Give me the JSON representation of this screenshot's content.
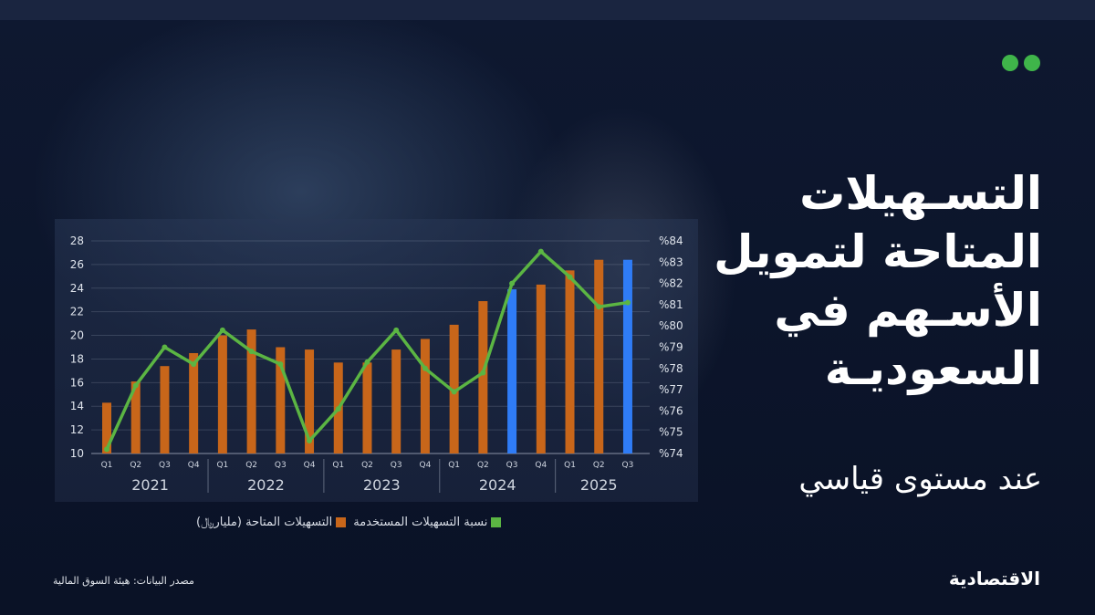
{
  "title": "التسـهيلات المتاحة لتمويل الأسـهم في السعوديـة",
  "subtitle": "عند مستوى قياسي",
  "source": "مصدر البيانات: هيئة السوق المالية",
  "logo": "الاقتصادية",
  "colors": {
    "bar": "#c8661a",
    "bar_highlight": "#2f7cf6",
    "line": "#5bb543",
    "background": "#0a1226"
  },
  "chart_data": {
    "type": "bar+line",
    "categories": [
      "Q1",
      "Q2",
      "Q3",
      "Q4",
      "Q1",
      "Q2",
      "Q3",
      "Q4",
      "Q1",
      "Q2",
      "Q3",
      "Q4",
      "Q1",
      "Q2",
      "Q3",
      "Q4",
      "Q1",
      "Q2",
      "Q3"
    ],
    "years": [
      "2021",
      "2022",
      "2023",
      "2024",
      "2025"
    ],
    "year_quarters": [
      4,
      4,
      4,
      4,
      3
    ],
    "left_axis": {
      "ylim": [
        10,
        28
      ],
      "ticks": [
        "10",
        "12",
        "14",
        "16",
        "18",
        "20",
        "22",
        "24",
        "26",
        "28"
      ]
    },
    "right_axis": {
      "ylim": [
        74,
        84
      ],
      "ticks": [
        "%74",
        "%75",
        "%76",
        "%77",
        "%78",
        "%79",
        "%80",
        "%81",
        "%82",
        "%83",
        "%84"
      ]
    },
    "grid": true,
    "legend_position": "bottom",
    "series": [
      {
        "name": "التسهيلات المتاحة (مليار﷼)",
        "type": "bar",
        "axis": "left",
        "values": [
          14.3,
          16.1,
          17.4,
          18.5,
          20.0,
          20.5,
          19.0,
          18.8,
          17.7,
          17.7,
          18.8,
          19.7,
          20.9,
          22.9,
          23.9,
          24.3,
          25.5,
          26.4,
          26.4
        ],
        "highlighted": [
          14,
          18
        ]
      },
      {
        "name": "نسبة التسهيلات المستخدمة",
        "type": "line",
        "axis": "right",
        "values": [
          74.2,
          77.2,
          79.0,
          78.2,
          79.8,
          78.8,
          78.2,
          74.6,
          76.1,
          78.3,
          79.8,
          78.0,
          76.9,
          77.8,
          82.0,
          83.5,
          82.3,
          80.9,
          81.1
        ]
      }
    ]
  }
}
